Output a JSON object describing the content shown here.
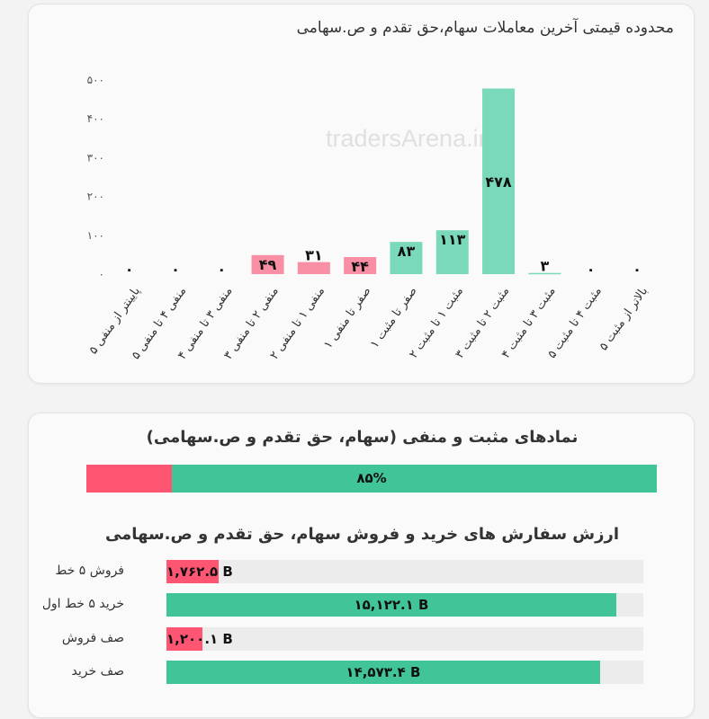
{
  "card1": {
    "title": "محدوده قیمتی آخرین معاملات سهام،حق تقدم و ص.سهامی",
    "watermark": "tradersArena.ir"
  },
  "chart_data": {
    "type": "bar",
    "categories": [
      "پایینتر از منفی ۵",
      "منفی ۴ تا منفی ۵",
      "منفی ۳ تا منفی ۴",
      "منفی ۲ تا منفی ۳",
      "منفی ۱ تا منفی ۲",
      "صفر تا منفی ۱",
      "صفر تا مثبت ۱",
      "مثبت ۱ تا مثبت ۲",
      "مثبت ۲ تا مثبت ۳",
      "مثبت ۳ تا مثبت ۴",
      "مثبت ۴ تا مثبت ۵",
      "بالاتر از مثبت ۵"
    ],
    "values": [
      0,
      0,
      0,
      49,
      31,
      44,
      83,
      113,
      478,
      3,
      0,
      0
    ],
    "value_labels": [
      "۰",
      "۰",
      "۰",
      "۴۹",
      "۳۱",
      "۴۴",
      "۸۳",
      "۱۱۳",
      "۴۷۸",
      "۳",
      "۰",
      "۰"
    ],
    "colors": [
      "#f98fa5",
      "#f98fa5",
      "#f98fa5",
      "#f98fa5",
      "#f98fa5",
      "#f98fa5",
      "#7bd9bb",
      "#7bd9bb",
      "#7bd9bb",
      "#7bd9bb",
      "#7bd9bb",
      "#7bd9bb"
    ],
    "ylim": [
      0,
      500
    ],
    "yticks": [
      0,
      100,
      200,
      300,
      400,
      500
    ],
    "ytick_labels": [
      "۰",
      "۱۰۰",
      "۲۰۰",
      "۳۰۰",
      "۴۰۰",
      "۵۰۰"
    ],
    "grid": false
  },
  "card2": {
    "title1": "نمادهای مثبت و منفی (سهام، حق تقدم و ص.سهامی)",
    "positive_fraction": 0.85,
    "percent_label": "۸۵%",
    "negative_color": "#fe5573",
    "positive_color": "#42c499",
    "title2": "ارزش سفارش های خرید و فروش سهام، حق تقدم و ص.سهامی",
    "orders": [
      {
        "label": "فروش ۵ خط",
        "value": 1762.5,
        "value_label": "۱,۷۶۲.۵ B",
        "color": "#fe5573"
      },
      {
        "label": "خرید ۵ خط اول",
        "value": 15122.1,
        "value_label": "۱۵,۱۲۲.۱ B",
        "color": "#42c499"
      },
      {
        "label": "صف فروش",
        "value": 1200.1,
        "value_label": "۱,۲۰۰.۱ B",
        "color": "#fe5573"
      },
      {
        "label": "صف خرید",
        "value": 14573.4,
        "value_label": "۱۴,۵۷۳.۴ B",
        "color": "#42c499"
      }
    ]
  }
}
